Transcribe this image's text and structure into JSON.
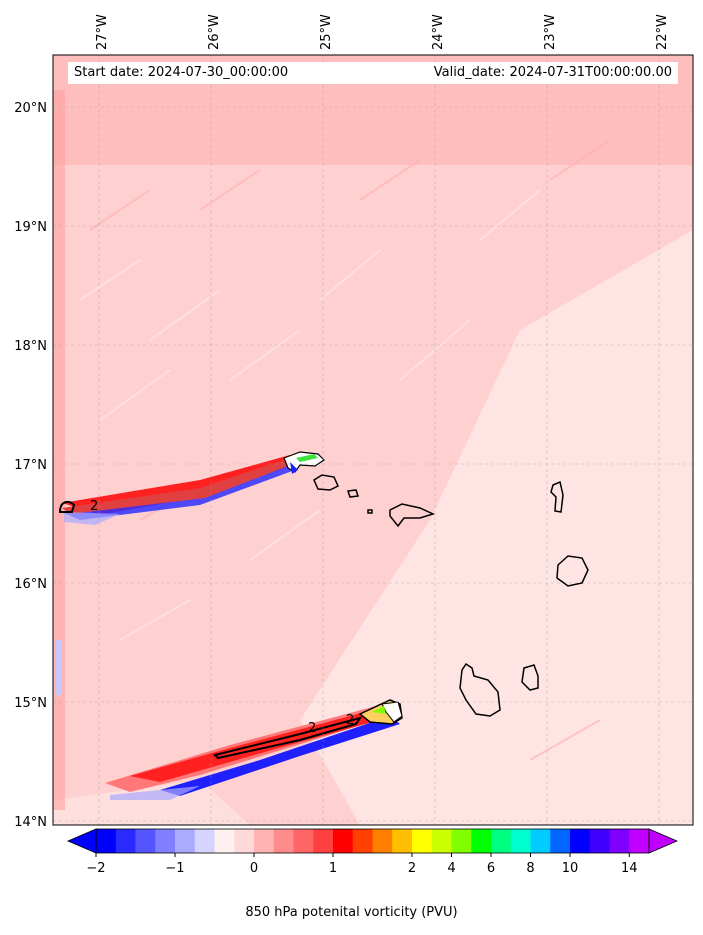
{
  "map": {
    "start_date_text": "Start date: 2024-07-30_00:00:00",
    "valid_date_text": "Valid_date: 2024-07-31T00:00:00.00",
    "lon_labels": [
      "27°W",
      "26°W",
      "25°W",
      "24°W",
      "23°W",
      "22°W"
    ],
    "lat_labels": [
      "20°N",
      "19°N",
      "18°N",
      "17°N",
      "16°N",
      "15°N",
      "14°N"
    ],
    "lon_range": [
      -27.4,
      -21.7
    ],
    "lat_range": [
      13.95,
      20.45
    ],
    "background_color": "#ffd0d0",
    "features": [
      {
        "name": "vorticity-streak-north",
        "description": "PV streak ending near 17°N 25°W"
      },
      {
        "name": "vorticity-streak-south",
        "description": "PV streak ending near 14.9°N 23.8°W"
      },
      {
        "name": "islands",
        "description": "Cape Verde islands outlines"
      }
    ],
    "contour_labels": [
      "2",
      "2",
      "2"
    ]
  },
  "colorbar": {
    "tick_labels": [
      "−2",
      "−1",
      "0",
      "1",
      "2",
      "4",
      "6",
      "8",
      "10",
      "14"
    ],
    "label": "850 hPa potenital vorticity (PVU)",
    "colors": [
      "#0000ff",
      "#2a2aff",
      "#5555ff",
      "#7f7fff",
      "#aaaaff",
      "#d4d4ff",
      "#fff0f0",
      "#ffd9d9",
      "#ffb3b3",
      "#ff8c8c",
      "#ff6666",
      "#ff4040",
      "#ff0000",
      "#ff4000",
      "#ff8000",
      "#ffbf00",
      "#ffff00",
      "#ccff00",
      "#80ff00",
      "#00ff00",
      "#00ff80",
      "#00ffcc",
      "#00ccff",
      "#0066ff",
      "#0000ff",
      "#4000ff",
      "#8000ff",
      "#bf00ff"
    ]
  }
}
